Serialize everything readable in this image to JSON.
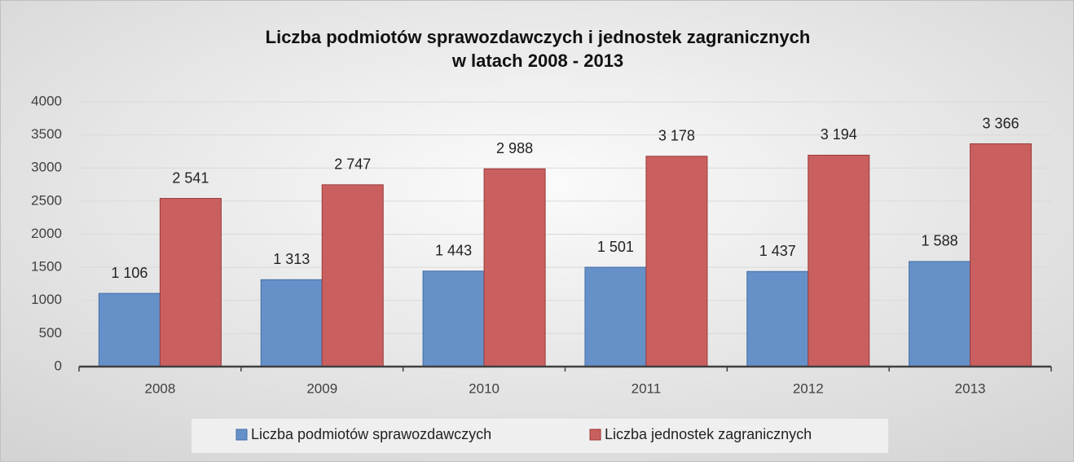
{
  "chart_data": {
    "type": "bar",
    "title": [
      "Liczba podmiotów sprawozdawczych i jednostek zagranicznych",
      "w latach 2008 - 2013"
    ],
    "categories": [
      "2008",
      "2009",
      "2010",
      "2011",
      "2012",
      "2013"
    ],
    "series": [
      {
        "name": "Liczba podmiotów sprawozdawczych",
        "color": "#6690c8",
        "values": [
          1106,
          1313,
          1443,
          1501,
          1437,
          1588
        ],
        "value_labels": [
          "1 106",
          "1 313",
          "1 443",
          "1 501",
          "1 437",
          "1 588"
        ]
      },
      {
        "name": "Liczba jednostek zagranicznych",
        "color": "#c9605f",
        "values": [
          2541,
          2747,
          2988,
          3178,
          3194,
          3366
        ],
        "value_labels": [
          "2 541",
          "2 747",
          "2 988",
          "3 178",
          "3 194",
          "3 366"
        ]
      }
    ],
    "ylim": [
      0,
      4000
    ],
    "yticks": [
      0,
      500,
      1000,
      1500,
      2000,
      2500,
      3000,
      3500,
      4000
    ],
    "grid": true,
    "legend": "bottom"
  }
}
